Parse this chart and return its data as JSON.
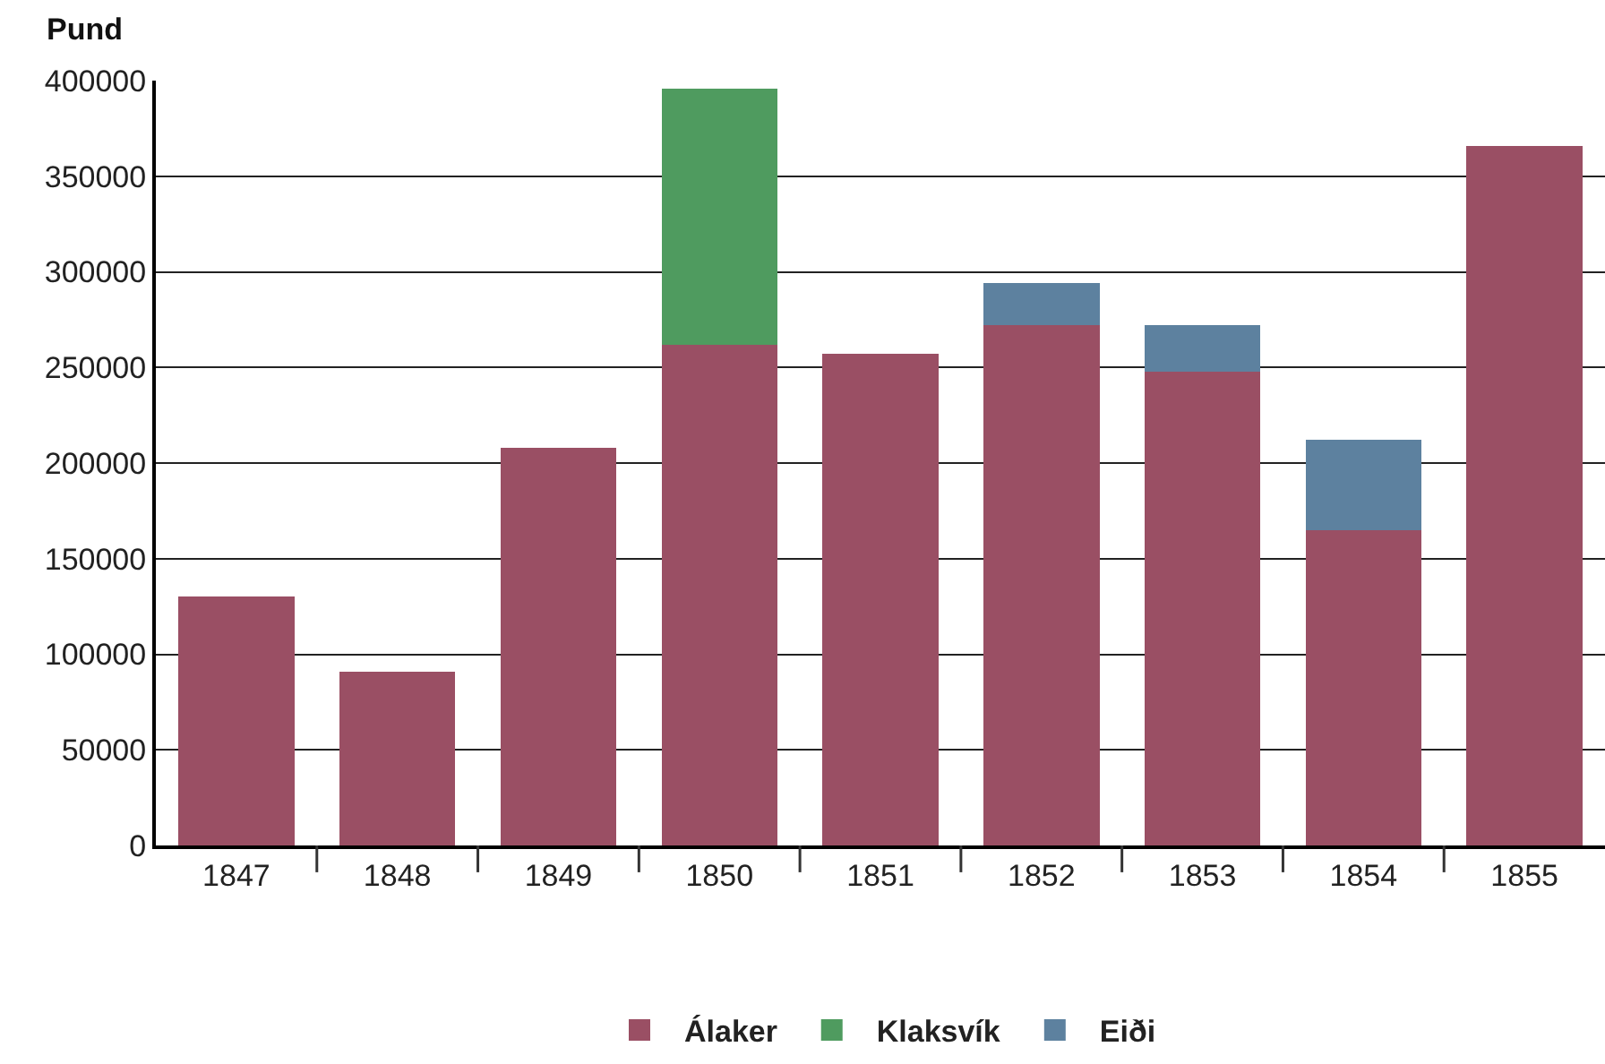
{
  "chart_data": {
    "type": "bar",
    "stacked": true,
    "ylabel": "Pund",
    "categories": [
      "1847",
      "1848",
      "1849",
      "1850",
      "1851",
      "1852",
      "1853",
      "1854",
      "1855"
    ],
    "series": [
      {
        "name": "Álaker",
        "color": "#9a4f64",
        "values": [
          130000,
          91000,
          208000,
          262000,
          257000,
          272000,
          248000,
          165000,
          366000
        ]
      },
      {
        "name": "Klaksvík",
        "color": "#4f9b5f",
        "values": [
          null,
          null,
          null,
          134000,
          null,
          null,
          null,
          null,
          null
        ]
      },
      {
        "name": "Eiði",
        "color": "#5d819f",
        "values": [
          null,
          null,
          null,
          null,
          null,
          22000,
          24000,
          47000,
          null
        ]
      }
    ],
    "ylim": [
      0,
      400000
    ],
    "yticks": [
      0,
      50000,
      100000,
      150000,
      200000,
      250000,
      300000,
      350000,
      400000
    ],
    "grid": "y",
    "legend": "bottom"
  }
}
